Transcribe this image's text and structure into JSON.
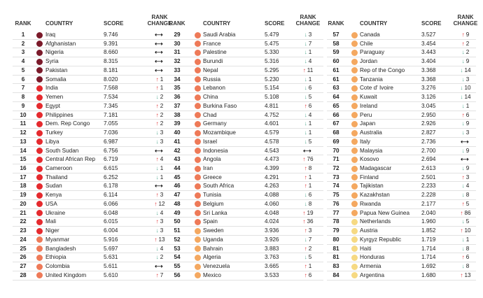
{
  "chart_data": {
    "type": "table",
    "headers": {
      "rank": "RANK",
      "country": "COUNTRY",
      "score": "SCORE",
      "change_line1": "RANK",
      "change_line2": "CHANGE"
    },
    "tier_colors": [
      "#7b1a2a",
      "#e52a2e",
      "#ee7a58",
      "#f4a860",
      "#f6d982"
    ],
    "columns": [
      [
        [
          "1",
          "Iraq",
          "9.746",
          "same",
          "",
          0
        ],
        [
          "2",
          "Afghanistan",
          "9.391",
          "same",
          "",
          0
        ],
        [
          "3",
          "Nigeria",
          "8.660",
          "same",
          "",
          0
        ],
        [
          "4",
          "Syria",
          "8.315",
          "same",
          "",
          0
        ],
        [
          "5",
          "Pakistan",
          "8.181",
          "same",
          "",
          0
        ],
        [
          "6",
          "Somalia",
          "8.020",
          "up",
          "1",
          0
        ],
        [
          "7",
          "India",
          "7.568",
          "up",
          "1",
          1
        ],
        [
          "8",
          "Yemen",
          "7.534",
          "down",
          "2",
          1
        ],
        [
          "9",
          "Egypt",
          "7.345",
          "up",
          "2",
          1
        ],
        [
          "10",
          "Philippines",
          "7.181",
          "up",
          "2",
          1
        ],
        [
          "11",
          "Dem. Rep Congo",
          "7.055",
          "up",
          "2",
          1
        ],
        [
          "12",
          "Turkey",
          "7.036",
          "down",
          "3",
          1
        ],
        [
          "13",
          "Libya",
          "6.987",
          "down",
          "3",
          1
        ],
        [
          "14",
          "South Sudan",
          "6.756",
          "same",
          "",
          1
        ],
        [
          "15",
          "Central African Rep",
          "6.719",
          "up",
          "4",
          1
        ],
        [
          "16",
          "Cameroon",
          "6.615",
          "down",
          "1",
          1
        ],
        [
          "17",
          "Thailand",
          "6.252",
          "down",
          "1",
          1
        ],
        [
          "18",
          "Sudan",
          "6.178",
          "same",
          "",
          1
        ],
        [
          "19",
          "Kenya",
          "6.114",
          "up",
          "3",
          1
        ],
        [
          "20",
          "USA",
          "6.066",
          "up",
          "12",
          1
        ],
        [
          "21",
          "Ukraine",
          "6.048",
          "down",
          "4",
          1
        ],
        [
          "22",
          "Mali",
          "6.015",
          "up",
          "3",
          1
        ],
        [
          "23",
          "Niger",
          "6.004",
          "down",
          "3",
          1
        ],
        [
          "24",
          "Myanmar",
          "5.916",
          "up",
          "13",
          2
        ],
        [
          "25",
          "Bangladesh",
          "5.697",
          "down",
          "4",
          2
        ],
        [
          "26",
          "Ethiopia",
          "5.631",
          "down",
          "2",
          2
        ],
        [
          "27",
          "Colombia",
          "5.611",
          "same",
          "",
          2
        ],
        [
          "28",
          "United Kingdom",
          "5.610",
          "up",
          "7",
          2
        ]
      ],
      [
        [
          "29",
          "Saudi Arabia",
          "5.479",
          "down",
          "3",
          2
        ],
        [
          "30",
          "France",
          "5.475",
          "down",
          "7",
          2
        ],
        [
          "31",
          "Palestine",
          "5.330",
          "down",
          "1",
          2
        ],
        [
          "32",
          "Burundi",
          "5.316",
          "down",
          "4",
          2
        ],
        [
          "33",
          "Nepal",
          "5.295",
          "up",
          "11",
          2
        ],
        [
          "34",
          "Russia",
          "5.230",
          "down",
          "1",
          2
        ],
        [
          "35",
          "Lebanon",
          "5.154",
          "down",
          "6",
          2
        ],
        [
          "36",
          "China",
          "5.108",
          "down",
          "5",
          2
        ],
        [
          "37",
          "Burkina Faso",
          "4.811",
          "up",
          "6",
          2
        ],
        [
          "38",
          "Chad",
          "4.752",
          "down",
          "4",
          2
        ],
        [
          "39",
          "Germany",
          "4.601",
          "down",
          "1",
          2
        ],
        [
          "40",
          "Mozambique",
          "4.579",
          "down",
          "1",
          2
        ],
        [
          "41",
          "Israel",
          "4.578",
          "down",
          "5",
          2
        ],
        [
          "42",
          "Indonesia",
          "4.543",
          "same",
          "",
          2
        ],
        [
          "43",
          "Angola",
          "4.473",
          "up",
          "76",
          2
        ],
        [
          "44",
          "Iran",
          "4.399",
          "up",
          "8",
          2
        ],
        [
          "45",
          "Greece",
          "4.291",
          "up",
          "1",
          2
        ],
        [
          "46",
          "South Africa",
          "4.263",
          "up",
          "1",
          2
        ],
        [
          "47",
          "Tunisia",
          "4.088",
          "down",
          "6",
          2
        ],
        [
          "48",
          "Belgium",
          "4.060",
          "down",
          "8",
          2
        ],
        [
          "49",
          "Sri Lanka",
          "4.048",
          "up",
          "19",
          2
        ],
        [
          "50",
          "Spain",
          "4.024",
          "up",
          "36",
          2
        ],
        [
          "51",
          "Sweden",
          "3.936",
          "up",
          "3",
          3
        ],
        [
          "52",
          "Uganda",
          "3.926",
          "down",
          "7",
          3
        ],
        [
          "53",
          "Bahrain",
          "3.883",
          "up",
          "2",
          3
        ],
        [
          "54",
          "Algeria",
          "3.763",
          "down",
          "5",
          3
        ],
        [
          "55",
          "Venezuela",
          "3.665",
          "up",
          "1",
          3
        ],
        [
          "56",
          "Mexico",
          "3.533",
          "up",
          "6",
          3
        ]
      ],
      [
        [
          "57",
          "Canada",
          "3.527",
          "up",
          "9",
          3
        ],
        [
          "58",
          "Chile",
          "3.454",
          "up",
          "2",
          3
        ],
        [
          "59",
          "Paraguay",
          "3.443",
          "down",
          "2",
          3
        ],
        [
          "60",
          "Jordan",
          "3.404",
          "down",
          "9",
          3
        ],
        [
          "61",
          "Rep of the Congo",
          "3.368",
          "down",
          "14",
          3
        ],
        [
          "61",
          "Tanzania",
          "3.368",
          "down",
          "3",
          3
        ],
        [
          "63",
          "Cote d' Ivoire",
          "3.276",
          "down",
          "10",
          3
        ],
        [
          "64",
          "Kuwait",
          "3.126",
          "down",
          "14",
          3
        ],
        [
          "65",
          "Ireland",
          "3.045",
          "down",
          "1",
          3
        ],
        [
          "66",
          "Peru",
          "2.950",
          "up",
          "6",
          3
        ],
        [
          "67",
          "Japan",
          "2.926",
          "down",
          "9",
          3
        ],
        [
          "68",
          "Australia",
          "2.827",
          "down",
          "3",
          3
        ],
        [
          "69",
          "Italy",
          "2.736",
          "same",
          "",
          3
        ],
        [
          "70",
          "Malaysia",
          "2.700",
          "down",
          "9",
          3
        ],
        [
          "71",
          "Kosovo",
          "2.694",
          "same",
          "",
          3
        ],
        [
          "72",
          "Madagascar",
          "2.613",
          "down",
          "9",
          3
        ],
        [
          "73",
          "Finland",
          "2.501",
          "up",
          "3",
          3
        ],
        [
          "74",
          "Tajikistan",
          "2.233",
          "down",
          "4",
          3
        ],
        [
          "75",
          "Kazakhstan",
          "2.228",
          "down",
          "8",
          3
        ],
        [
          "76",
          "Rwanda",
          "2.177",
          "up",
          "5",
          3
        ],
        [
          "77",
          "Papua New Guinea",
          "2.040",
          "up",
          "86",
          3
        ],
        [
          "78",
          "Netherlands",
          "1.960",
          "down",
          "5",
          4
        ],
        [
          "79",
          "Austria",
          "1.852",
          "up",
          "10",
          4
        ],
        [
          "80",
          "Kyrgyz Republic",
          "1.719",
          "down",
          "1",
          4
        ],
        [
          "81",
          "Haiti",
          "1.714",
          "down",
          "8",
          4
        ],
        [
          "81",
          "Honduras",
          "1.714",
          "up",
          "6",
          4
        ],
        [
          "83",
          "Armenia",
          "1.692",
          "down",
          "8",
          4
        ],
        [
          "84",
          "Argentina",
          "1.680",
          "up",
          "13",
          4
        ]
      ]
    ]
  }
}
